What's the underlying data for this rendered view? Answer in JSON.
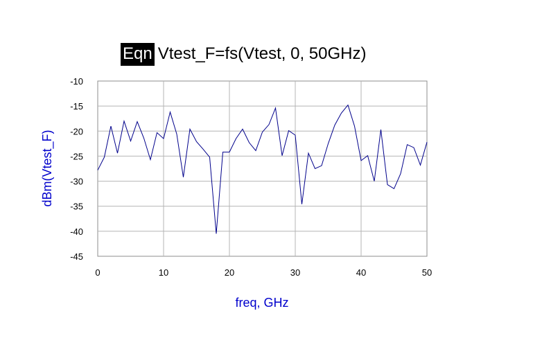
{
  "title": {
    "badge": "Eqn",
    "text": "Vtest_F=fs(Vtest, 0, 50GHz)"
  },
  "colors": {
    "series": "#00008b",
    "axis_title": "#0000cc",
    "grid": "#b4b4b4",
    "frame": "#8c8c8c"
  },
  "chart_data": {
    "type": "line",
    "xlabel": "freq, GHz",
    "ylabel": "dBm(Vtest_F)",
    "xlim": [
      0,
      50
    ],
    "ylim": [
      -45,
      -10
    ],
    "xticks": [
      0,
      10,
      20,
      30,
      40,
      50
    ],
    "yticks": [
      -10,
      -15,
      -20,
      -25,
      -30,
      -35,
      -40,
      -45
    ],
    "grid": true,
    "series": [
      {
        "x": [
          0,
          1,
          2,
          3,
          4,
          5,
          6,
          7,
          8,
          9,
          10,
          11,
          12,
          13,
          14,
          15,
          16,
          17,
          18,
          19,
          20,
          21,
          22,
          23,
          24,
          25,
          26,
          27,
          28,
          29,
          30,
          31,
          32,
          33,
          34,
          35,
          36,
          37,
          38,
          39,
          40,
          41,
          42,
          43,
          44,
          45,
          46,
          47,
          48,
          49,
          50
        ],
        "values": [
          -27.8,
          -25.2,
          -19.0,
          -24.4,
          -18.0,
          -22.0,
          -18.1,
          -21.4,
          -25.7,
          -20.3,
          -21.5,
          -16.2,
          -20.6,
          -29.2,
          -19.6,
          -22.1,
          -23.6,
          -25.2,
          -40.5,
          -24.2,
          -24.2,
          -21.5,
          -19.6,
          -22.3,
          -23.9,
          -20.2,
          -18.7,
          -15.4,
          -24.9,
          -19.9,
          -20.8,
          -34.6,
          -24.4,
          -27.5,
          -26.9,
          -22.5,
          -18.8,
          -16.4,
          -14.8,
          -19.0,
          -25.9,
          -24.9,
          -30.0,
          -19.7,
          -30.7,
          -31.5,
          -28.5,
          -22.7,
          -23.3,
          -26.8,
          -22.2
        ]
      }
    ]
  }
}
